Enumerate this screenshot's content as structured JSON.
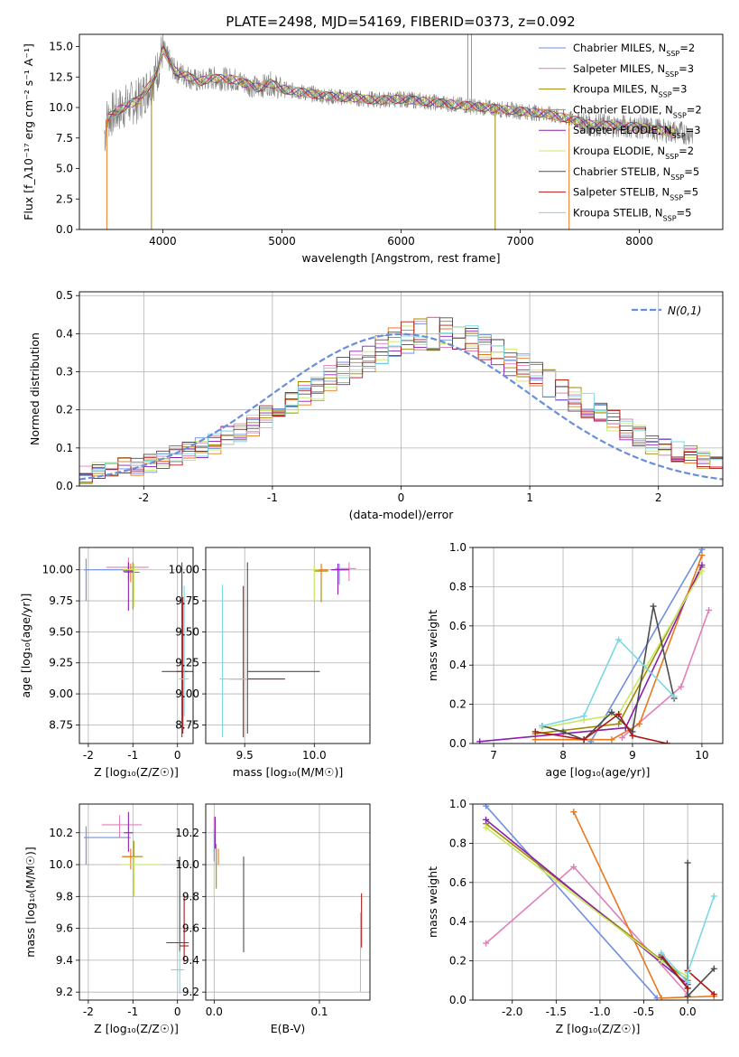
{
  "title": "PLATE=2498, MJD=54169, FIBERID=0373, z=0.092",
  "colors": {
    "chabrier_miles": "#6f8fe0",
    "salpeter_miles": "#e07fb8",
    "kroupa_miles": "#a08a00",
    "chabrier_elodie": "#e8781e",
    "salpeter_elodie": "#8a1fb0",
    "kroupa_elodie": "#c8e860",
    "chabrier_stelib": "#4d4d4d",
    "salpeter_stelib": "#b01818",
    "kroupa_stelib": "#7ad8e0",
    "gaussian": "#6a8fd8",
    "observed": "#808080"
  },
  "chart_data": [
    {
      "id": "spectrum",
      "type": "line",
      "xlabel": "wavelength [Angstrom, rest frame]",
      "ylabel": "Flux [f_λ10⁻¹⁷ erg cm⁻² s⁻¹ A⁻¹]",
      "xlim": [
        3300,
        8700
      ],
      "ylim": [
        0,
        16
      ],
      "xticks": [
        4000,
        5000,
        6000,
        7000,
        8000
      ],
      "yticks": [
        0.0,
        2.5,
        5.0,
        7.5,
        10.0,
        12.5,
        15.0
      ],
      "continuum": {
        "x": [
          3520,
          3600,
          3700,
          3800,
          3900,
          3950,
          4000,
          4100,
          4200,
          4300,
          4400,
          4600,
          4800,
          4900,
          5000,
          5200,
          5400,
          5600,
          5800,
          6000,
          6200,
          6400,
          6600,
          6800,
          7000,
          7200,
          7400,
          7600,
          7800,
          8000,
          8200,
          8400
        ],
        "y": [
          9.0,
          9.6,
          10.2,
          10.6,
          12.0,
          12.8,
          14.8,
          13.0,
          12.6,
          12.1,
          12.4,
          12.3,
          11.6,
          12.0,
          11.5,
          11.2,
          10.9,
          10.8,
          10.6,
          10.7,
          10.5,
          10.3,
          10.1,
          9.9,
          9.7,
          9.5,
          9.1,
          8.6,
          8.5,
          8.4,
          8.1,
          7.9
        ]
      },
      "legend_position": "upper right",
      "legend": [
        "Chabrier MILES, N_SSP=2",
        "Salpeter MILES, N_SSP=3",
        "Kroupa MILES, N_SSP=3",
        "Chabrier ELODIE, N_SSP=2",
        "Salpeter ELODIE, N_SSP=3",
        "Kroupa ELODIE, N_SSP=2",
        "Chabrier STELIB, N_SSP=5",
        "Salpeter STELIB, N_SSP=5",
        "Kroupa STELIB, N_SSP=5"
      ]
    },
    {
      "id": "residuals",
      "type": "bar",
      "xlabel": "(data-model)/error",
      "ylabel": "Normed distribution",
      "xlim": [
        -2.5,
        2.5
      ],
      "ylim": [
        0,
        0.51
      ],
      "xticks": [
        -2,
        -1,
        0,
        1,
        2
      ],
      "yticks": [
        0.0,
        0.1,
        0.2,
        0.3,
        0.4,
        0.5
      ],
      "bin_width": 0.1,
      "legend": [
        "N(0,1)"
      ],
      "legend_position": "upper right",
      "hist_base": [
        0.03,
        0.04,
        0.04,
        0.05,
        0.05,
        0.06,
        0.07,
        0.08,
        0.09,
        0.1,
        0.11,
        0.13,
        0.14,
        0.16,
        0.18,
        0.2,
        0.22,
        0.24,
        0.26,
        0.28,
        0.3,
        0.32,
        0.34,
        0.36,
        0.38,
        0.39,
        0.4,
        0.4,
        0.4,
        0.39,
        0.38,
        0.37,
        0.35,
        0.33,
        0.31,
        0.29,
        0.27,
        0.25,
        0.23,
        0.21,
        0.19,
        0.17,
        0.15,
        0.13,
        0.11,
        0.1,
        0.09,
        0.08,
        0.07,
        0.06,
        0.05
      ]
    },
    {
      "id": "age_vs_z",
      "type": "scatter",
      "xlabel": "Z [log₁₀(Z/Z☉)]",
      "ylabel": "age  [log₁₀(age/yr)]",
      "xlim": [
        -2.2,
        0.35
      ],
      "ylim": [
        8.6,
        10.18
      ],
      "xticks": [
        -2,
        -1,
        0
      ],
      "yticks": [
        8.75,
        9.0,
        9.25,
        9.5,
        9.75,
        10.0
      ],
      "errorbars": [
        {
          "series": "chabrier_miles",
          "x": -2.05,
          "y": 10.0,
          "xerr": [
            0.05,
            1.05
          ],
          "yerr": [
            0.25,
            0.09
          ]
        },
        {
          "series": "salpeter_miles",
          "x": -1.1,
          "y": 10.02,
          "xerr": [
            0.5,
            0.45
          ],
          "yerr": [
            0.1,
            0.08
          ]
        },
        {
          "series": "kroupa_miles",
          "x": -1.0,
          "y": 9.98,
          "xerr": [
            0.2,
            0.15
          ],
          "yerr": [
            0.3,
            0.08
          ]
        },
        {
          "series": "chabrier_elodie",
          "x": -1.05,
          "y": 10.0,
          "xerr": [
            0.2,
            0.1
          ],
          "yerr": [
            0.1,
            0.05
          ]
        },
        {
          "series": "salpeter_elodie",
          "x": -1.1,
          "y": 9.99,
          "xerr": [
            0.12,
            0.12
          ],
          "yerr": [
            0.32,
            0.07
          ]
        },
        {
          "series": "kroupa_elodie",
          "x": -0.98,
          "y": 10.0,
          "xerr": [
            0.25,
            0.1
          ],
          "yerr": [
            0.3,
            0.05
          ]
        },
        {
          "series": "chabrier_stelib",
          "x": 0.1,
          "y": 9.18,
          "xerr": [
            0.45,
            0.25
          ],
          "yerr": [
            0.53,
            0.88
          ]
        },
        {
          "series": "salpeter_stelib",
          "x": 0.12,
          "y": 9.18,
          "xerr": [
            0.15,
            0.1
          ],
          "yerr": [
            0.5,
            0.6
          ]
        },
        {
          "series": "kroupa_stelib",
          "x": 0.15,
          "y": 9.12,
          "xerr": [
            0.12,
            0.1
          ],
          "yerr": [
            0.3,
            0.75
          ]
        }
      ]
    },
    {
      "id": "age_vs_mass",
      "type": "scatter",
      "xlabel": "mass [log₁₀(M/M☉)]",
      "ylabel": "",
      "xlim": [
        9.22,
        10.4
      ],
      "ylim": [
        8.6,
        10.18
      ],
      "xticks": [
        9.5,
        10.0
      ],
      "yticks": [
        8.75,
        9.0,
        9.25,
        9.5,
        9.75,
        10.0
      ],
      "errorbars": [
        {
          "series": "chabrier_miles",
          "x": 10.18,
          "y": 10.0,
          "xerr": [
            0.05,
            0.05
          ],
          "yerr": [
            0.12,
            0.05
          ]
        },
        {
          "series": "salpeter_miles",
          "x": 10.25,
          "y": 10.01,
          "xerr": [
            0.1,
            0.05
          ],
          "yerr": [
            0.1,
            0.05
          ]
        },
        {
          "series": "kroupa_miles",
          "x": 10.05,
          "y": 9.99,
          "xerr": [
            0.05,
            0.05
          ],
          "yerr": [
            0.25,
            0.05
          ]
        },
        {
          "series": "chabrier_elodie",
          "x": 10.05,
          "y": 10.0,
          "xerr": [
            0.05,
            0.05
          ],
          "yerr": [
            0.1,
            0.05
          ]
        },
        {
          "series": "salpeter_elodie",
          "x": 10.17,
          "y": 10.0,
          "xerr": [
            0.05,
            0.08
          ],
          "yerr": [
            0.2,
            0.05
          ]
        },
        {
          "series": "kroupa_elodie",
          "x": 10.0,
          "y": 10.0,
          "xerr": [
            0.02,
            0.03
          ],
          "yerr": [
            0.25,
            0.03
          ]
        },
        {
          "series": "chabrier_stelib",
          "x": 9.52,
          "y": 9.18,
          "xerr": [
            0.0,
            0.52
          ],
          "yerr": [
            0.5,
            0.88
          ]
        },
        {
          "series": "salpeter_stelib",
          "x": 9.49,
          "y": 9.12,
          "xerr": [
            0.1,
            0.3
          ],
          "yerr": [
            0.47,
            0.75
          ]
        },
        {
          "series": "kroupa_stelib",
          "x": 9.34,
          "y": 9.12,
          "xerr": [
            0.02,
            0.18
          ],
          "yerr": [
            0.47,
            0.76
          ]
        }
      ]
    },
    {
      "id": "weight_vs_age",
      "type": "line",
      "xlabel": "age  [log₁₀(age/yr)]",
      "ylabel": "mass weight",
      "xlim": [
        6.7,
        10.3
      ],
      "ylim": [
        0,
        1.0
      ],
      "xticks": [
        7,
        8,
        9,
        10
      ],
      "yticks": [
        0.0,
        0.2,
        0.4,
        0.6,
        0.8,
        1.0
      ],
      "series": [
        {
          "key": "chabrier_miles",
          "x": [
            8.4,
            10.0
          ],
          "y": [
            0.01,
            0.99
          ]
        },
        {
          "key": "salpeter_miles",
          "x": [
            8.85,
            9.7,
            10.1
          ],
          "y": [
            0.03,
            0.29,
            0.68
          ]
        },
        {
          "key": "kroupa_miles",
          "x": [
            7.6,
            8.8,
            10.0
          ],
          "y": [
            0.05,
            0.1,
            0.9
          ]
        },
        {
          "key": "chabrier_elodie",
          "x": [
            7.6,
            8.7,
            9.1,
            10.0
          ],
          "y": [
            0.02,
            0.02,
            0.1,
            0.96
          ]
        },
        {
          "key": "salpeter_elodie",
          "x": [
            6.8,
            8.9,
            10.0
          ],
          "y": [
            0.01,
            0.08,
            0.91
          ]
        },
        {
          "key": "kroupa_elodie",
          "x": [
            7.7,
            8.3,
            8.8,
            10.0
          ],
          "y": [
            0.08,
            0.12,
            0.15,
            0.88
          ]
        },
        {
          "key": "chabrier_stelib",
          "x": [
            7.7,
            8.0,
            8.3,
            8.7,
            9.0,
            9.3,
            9.6
          ],
          "y": [
            0.09,
            0.06,
            0.02,
            0.16,
            0.06,
            0.7,
            0.23
          ]
        },
        {
          "key": "salpeter_stelib",
          "x": [
            7.6,
            8.3,
            8.8,
            9.0,
            9.5
          ],
          "y": [
            0.06,
            0.02,
            0.15,
            0.04,
            0.0
          ]
        },
        {
          "key": "kroupa_stelib",
          "x": [
            7.7,
            8.3,
            8.8,
            9.6
          ],
          "y": [
            0.09,
            0.14,
            0.53,
            0.24
          ]
        }
      ]
    },
    {
      "id": "mass_vs_z",
      "type": "scatter",
      "xlabel": "Z [log₁₀(Z/Z☉)]",
      "ylabel": "mass [log₁₀(M/M☉)]",
      "xlim": [
        -2.2,
        0.35
      ],
      "ylim": [
        9.15,
        10.38
      ],
      "xticks": [
        -2,
        -1,
        0
      ],
      "yticks": [
        9.2,
        9.4,
        9.6,
        9.8,
        10.0,
        10.2
      ],
      "errorbars": [
        {
          "series": "chabrier_miles",
          "x": -2.05,
          "y": 10.17,
          "xerr": [
            0.05,
            1.0
          ],
          "yerr": [
            0.17,
            0.07
          ]
        },
        {
          "series": "salpeter_miles",
          "x": -1.3,
          "y": 10.25,
          "xerr": [
            0.4,
            0.5
          ],
          "yerr": [
            0.08,
            0.06
          ]
        },
        {
          "series": "kroupa_miles",
          "x": -0.98,
          "y": 10.05,
          "xerr": [
            0.25,
            0.2
          ],
          "yerr": [
            0.25,
            0.1
          ]
        },
        {
          "series": "chabrier_elodie",
          "x": -1.05,
          "y": 10.05,
          "xerr": [
            0.2,
            0.1
          ],
          "yerr": [
            0.08,
            0.05
          ]
        },
        {
          "series": "salpeter_elodie",
          "x": -1.1,
          "y": 10.2,
          "xerr": [
            0.1,
            0.1
          ],
          "yerr": [
            0.12,
            0.13
          ]
        },
        {
          "series": "kroupa_elodie",
          "x": -0.98,
          "y": 10.0,
          "xerr": [
            0.3,
            0.6
          ],
          "yerr": [
            0.2,
            0.05
          ]
        },
        {
          "series": "chabrier_stelib",
          "x": 0.05,
          "y": 9.51,
          "xerr": [
            0.3,
            0.2
          ],
          "yerr": [
            0.06,
            0.54
          ]
        },
        {
          "series": "salpeter_stelib",
          "x": 0.15,
          "y": 9.49,
          "xerr": [
            0.1,
            0.1
          ],
          "yerr": [
            0.1,
            0.32
          ]
        },
        {
          "series": "kroupa_stelib",
          "x": 0.05,
          "y": 9.34,
          "xerr": [
            0.2,
            0.1
          ],
          "yerr": [
            0.15,
            0.12
          ]
        }
      ]
    },
    {
      "id": "mass_vs_ebv",
      "type": "scatter",
      "xlabel": "E(B-V)",
      "ylabel": "",
      "xlim": [
        -0.008,
        0.148
      ],
      "ylim": [
        9.15,
        10.38
      ],
      "xticks": [
        0.0,
        0.1
      ],
      "yticks": [
        9.2,
        9.4,
        9.6,
        9.8,
        10.0,
        10.2
      ],
      "errorbars": [
        {
          "series": "chabrier_miles",
          "x": 0.0,
          "y": 10.17,
          "xerr": [
            0,
            0
          ],
          "yerr": [
            0.15,
            0.05
          ]
        },
        {
          "series": "salpeter_miles",
          "x": 0.0,
          "y": 10.25,
          "xerr": [
            0,
            0
          ],
          "yerr": [
            0.06,
            0.05
          ]
        },
        {
          "series": "kroupa_miles",
          "x": 0.002,
          "y": 10.05,
          "xerr": [
            0,
            0
          ],
          "yerr": [
            0.2,
            0.08
          ]
        },
        {
          "series": "chabrier_elodie",
          "x": 0.004,
          "y": 10.05,
          "xerr": [
            0,
            0
          ],
          "yerr": [
            0.05,
            0.05
          ]
        },
        {
          "series": "salpeter_elodie",
          "x": 0.001,
          "y": 10.2,
          "xerr": [
            0,
            0
          ],
          "yerr": [
            0.1,
            0.1
          ]
        },
        {
          "series": "kroupa_elodie",
          "x": 0.0,
          "y": 9.95,
          "xerr": [
            0,
            0
          ],
          "yerr": [
            0.15,
            0.05
          ]
        },
        {
          "series": "chabrier_stelib",
          "x": 0.028,
          "y": 9.75,
          "xerr": [
            0,
            0
          ],
          "yerr": [
            0.3,
            0.3
          ]
        },
        {
          "series": "salpeter_stelib",
          "x": 0.14,
          "y": 9.6,
          "xerr": [
            0,
            0
          ],
          "yerr": [
            0.12,
            0.22
          ]
        },
        {
          "series": "kroupa_stelib",
          "x": 0.139,
          "y": 9.45,
          "xerr": [
            0,
            0
          ],
          "yerr": [
            0.25,
            0.25
          ]
        }
      ]
    },
    {
      "id": "weight_vs_z",
      "type": "line",
      "xlabel": "Z [log₁₀(Z/Z☉)]",
      "ylabel": "mass weight",
      "xlim": [
        -2.45,
        0.4
      ],
      "ylim": [
        0,
        1.0
      ],
      "xticks": [
        -2.0,
        -1.5,
        -1.0,
        -0.5,
        0.0
      ],
      "yticks": [
        0.0,
        0.2,
        0.4,
        0.6,
        0.8,
        1.0
      ],
      "series": [
        {
          "key": "chabrier_miles",
          "x": [
            -2.3,
            -0.35
          ],
          "y": [
            0.99,
            0.01
          ]
        },
        {
          "key": "salpeter_miles",
          "x": [
            -2.3,
            -1.3,
            0.0
          ],
          "y": [
            0.29,
            0.68,
            0.03
          ]
        },
        {
          "key": "kroupa_miles",
          "x": [
            -2.3,
            0.0
          ],
          "y": [
            0.9,
            0.1
          ]
        },
        {
          "key": "chabrier_elodie",
          "x": [
            -1.3,
            -0.3,
            0.3
          ],
          "y": [
            0.96,
            0.01,
            0.02
          ]
        },
        {
          "key": "salpeter_elodie",
          "x": [
            -2.3,
            0.0
          ],
          "y": [
            0.92,
            0.08
          ]
        },
        {
          "key": "kroupa_elodie",
          "x": [
            -2.3,
            -0.3,
            0.0
          ],
          "y": [
            0.88,
            0.2,
            0.12
          ]
        },
        {
          "key": "chabrier_stelib",
          "x": [
            -0.3,
            0.0,
            0.0,
            0.0,
            0.3
          ],
          "y": [
            0.22,
            0.06,
            0.7,
            0.02,
            0.16
          ]
        },
        {
          "key": "salpeter_stelib",
          "x": [
            -0.3,
            0.0,
            0.0,
            0.3
          ],
          "y": [
            0.23,
            0.06,
            0.15,
            0.03
          ]
        },
        {
          "key": "kroupa_stelib",
          "x": [
            -0.3,
            0.0,
            0.0,
            0.3
          ],
          "y": [
            0.24,
            0.09,
            0.14,
            0.53
          ]
        }
      ]
    }
  ]
}
